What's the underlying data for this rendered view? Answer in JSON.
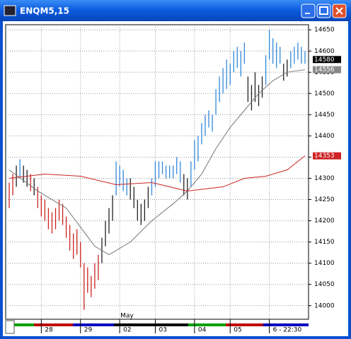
{
  "chart_data": {
    "type": "range_bars",
    "title": "ENQM5,15",
    "ylim": [
      13968,
      14662
    ],
    "yticks": [
      14000,
      14050,
      14100,
      14150,
      14200,
      14250,
      14300,
      14350,
      14400,
      14450,
      14500,
      14550,
      14600,
      14650
    ],
    "xlim": [
      -1,
      84
    ],
    "xticks": [
      {
        "value": 9,
        "label": "28"
      },
      {
        "value": 20,
        "label": "29"
      },
      {
        "value": 31,
        "label": "02"
      },
      {
        "value": 41,
        "label": "03"
      },
      {
        "value": 52,
        "label": "04"
      },
      {
        "value": 62,
        "label": "05"
      },
      {
        "value": 73,
        "label": "6 - 22:30"
      }
    ],
    "annotation": {
      "text": "May",
      "x": 31
    },
    "grid": true,
    "series": [
      {
        "color": "#cc2222",
        "x": [
          0,
          1,
          6,
          8,
          9,
          10,
          11,
          12,
          13,
          14,
          15,
          16,
          17,
          18,
          19,
          20,
          21,
          22,
          23,
          24,
          25
        ],
        "high": [
          14290,
          14310,
          14310,
          14280,
          14260,
          14250,
          14230,
          14220,
          14230,
          14250,
          14240,
          14210,
          14190,
          14170,
          14180,
          14150,
          14100,
          14090,
          14070,
          14100,
          14120
        ],
        "low": [
          14230,
          14260,
          14270,
          14230,
          14210,
          14200,
          14180,
          14170,
          14180,
          14200,
          14190,
          14160,
          14130,
          14110,
          14120,
          14090,
          13990,
          14030,
          14020,
          14040,
          14060
        ]
      },
      {
        "color": "#222222",
        "x": [
          2,
          4,
          5,
          7,
          26,
          27,
          28,
          29,
          34,
          35,
          36,
          37,
          38,
          39,
          49,
          50,
          67,
          68,
          69,
          70,
          71,
          77,
          78
        ],
        "high": [
          14330,
          14330,
          14320,
          14300,
          14160,
          14200,
          14230,
          14260,
          14300,
          14280,
          14250,
          14240,
          14250,
          14280,
          14310,
          14300,
          14540,
          14520,
          14550,
          14520,
          14540,
          14570,
          14580
        ],
        "low": [
          14280,
          14290,
          14280,
          14260,
          14100,
          14140,
          14170,
          14200,
          14250,
          14230,
          14200,
          14190,
          14200,
          14230,
          14260,
          14250,
          14480,
          14460,
          14480,
          14470,
          14490,
          14530,
          14540
        ]
      },
      {
        "color": "#3388dd",
        "x": [
          3,
          30,
          31,
          32,
          33,
          40,
          41,
          42,
          43,
          44,
          45,
          46,
          47,
          48,
          51,
          52,
          53,
          54,
          55,
          56,
          57,
          58,
          59,
          60,
          61,
          62,
          63,
          64,
          65,
          66,
          72,
          73,
          74,
          75,
          76,
          79,
          80,
          81,
          82,
          83
        ],
        "high": [
          14345,
          14340,
          14330,
          14320,
          14300,
          14300,
          14340,
          14340,
          14340,
          14330,
          14330,
          14330,
          14350,
          14340,
          14340,
          14390,
          14400,
          14430,
          14450,
          14460,
          14450,
          14510,
          14540,
          14560,
          14580,
          14570,
          14600,
          14610,
          14600,
          14620,
          14590,
          14650,
          14630,
          14620,
          14610,
          14600,
          14610,
          14620,
          14610,
          14600
        ],
        "low": [
          14300,
          14260,
          14280,
          14270,
          14260,
          14260,
          14280,
          14300,
          14310,
          14300,
          14300,
          14300,
          14310,
          14290,
          14280,
          14320,
          14340,
          14380,
          14400,
          14420,
          14410,
          14450,
          14480,
          14500,
          14510,
          14520,
          14550,
          14560,
          14540,
          14570,
          14520,
          14580,
          14570,
          14560,
          14570,
          14560,
          14570,
          14580,
          14570,
          14570
        ]
      }
    ],
    "lines": [
      {
        "color": "#777777",
        "x": [
          0,
          8,
          16,
          24,
          28,
          34,
          40,
          46,
          50,
          54,
          58,
          62,
          66,
          70,
          74,
          78,
          83
        ],
        "values": [
          14320,
          14270,
          14230,
          14140,
          14120,
          14150,
          14200,
          14240,
          14270,
          14310,
          14370,
          14420,
          14460,
          14500,
          14530,
          14550,
          14556
        ]
      },
      {
        "color": "#cc2222",
        "x": [
          0,
          10,
          20,
          30,
          40,
          50,
          60,
          66,
          72,
          78,
          83
        ],
        "values": [
          14300,
          14310,
          14305,
          14285,
          14290,
          14270,
          14280,
          14300,
          14305,
          14320,
          14353
        ]
      }
    ],
    "price_labels": [
      {
        "value": 14580,
        "color": "#000000"
      },
      {
        "value": 14556,
        "color": "#888888"
      },
      {
        "value": 14353,
        "color": "#cc2222"
      }
    ]
  }
}
